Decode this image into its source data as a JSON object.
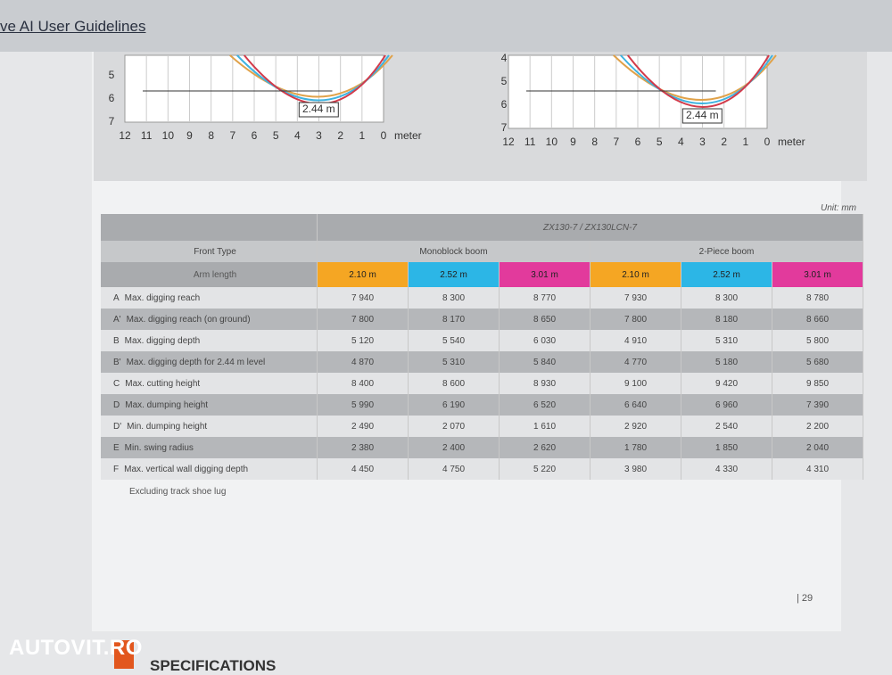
{
  "header": {
    "title": "ve AI User Guidelines"
  },
  "diagrams": [
    {
      "y_labels": [
        "5",
        "6",
        "7"
      ],
      "x_labels": [
        "12",
        "11",
        "10",
        "9",
        "8",
        "7",
        "6",
        "5",
        "4",
        "3",
        "2",
        "1",
        "0"
      ],
      "x_unit": "meter",
      "dimension": "2.44 m"
    },
    {
      "y_labels": [
        "4",
        "5",
        "6",
        "7"
      ],
      "x_labels": [
        "12",
        "11",
        "10",
        "9",
        "8",
        "7",
        "6",
        "5",
        "4",
        "3",
        "2",
        "1",
        "0"
      ],
      "x_unit": "meter",
      "dimension": "2.44 m"
    }
  ],
  "table": {
    "unit": "Unit: mm",
    "model": "ZX130-7 / ZX130LCN-7",
    "front_type_label": "Front Type",
    "groups": [
      "Monoblock boom",
      "2-Piece boom"
    ],
    "arm_length_label": "Arm length",
    "arm_lengths": [
      "2.10 m",
      "2.52 m",
      "3.01 m",
      "2.10 m",
      "2.52 m",
      "3.01 m"
    ],
    "rows": [
      {
        "code": "A",
        "label": "Max. digging reach",
        "values": [
          "7 940",
          "8 300",
          "8 770",
          "7 930",
          "8 300",
          "8 780"
        ]
      },
      {
        "code": "A'",
        "label": "Max. digging reach (on ground)",
        "values": [
          "7 800",
          "8 170",
          "8 650",
          "7 800",
          "8 180",
          "8 660"
        ]
      },
      {
        "code": "B",
        "label": "Max. digging depth",
        "values": [
          "5 120",
          "5 540",
          "6 030",
          "4 910",
          "5 310",
          "5 800"
        ]
      },
      {
        "code": "B'",
        "label": "Max. digging depth for 2.44 m level",
        "values": [
          "4 870",
          "5 310",
          "5 840",
          "4 770",
          "5 180",
          "5 680"
        ]
      },
      {
        "code": "C",
        "label": "Max. cutting height",
        "values": [
          "8 400",
          "8 600",
          "8 930",
          "9 100",
          "9 420",
          "9 850"
        ]
      },
      {
        "code": "D",
        "label": "Max. dumping height",
        "values": [
          "5 990",
          "6 190",
          "6 520",
          "6 640",
          "6 960",
          "7 390"
        ]
      },
      {
        "code": "D'",
        "label": "Min. dumping height",
        "values": [
          "2 490",
          "2 070",
          "1 610",
          "2 920",
          "2 540",
          "2 200"
        ]
      },
      {
        "code": "E",
        "label": "Min. swing radius",
        "values": [
          "2 380",
          "2 400",
          "2 620",
          "1 780",
          "1 850",
          "2 040"
        ]
      },
      {
        "code": "F",
        "label": "Max. vertical wall digging depth",
        "values": [
          "4 450",
          "4 750",
          "5 220",
          "3 980",
          "4 330",
          "4 310"
        ]
      }
    ],
    "footnote": "Excluding track shoe lug"
  },
  "page_number": "| 29",
  "next_section": "SPECIFICATIONS",
  "watermark": "AUTOVIT.RO"
}
